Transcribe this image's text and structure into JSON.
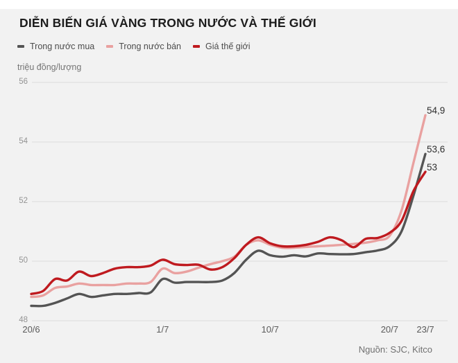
{
  "title": "DIỄN BIẾN GIÁ VÀNG TRONG NƯỚC VÀ THẾ GIỚI",
  "source": "Nguồn: SJC, Kitco",
  "colors": {
    "background": "#f2f2f2",
    "top_strip": "#ffffff",
    "grid": "#dcdcdc",
    "buy_line": "#545454",
    "sell_line": "#e9a1a0",
    "world_line": "#bf1a1f"
  },
  "chart_data": {
    "type": "line",
    "title": "DIỄN BIẾN GIÁ VÀNG TRONG NƯỚC VÀ THẾ GIỚI",
    "ylabel": "triệu đồng/lượng",
    "xlabel": "",
    "ylim": [
      48,
      56
    ],
    "yticks": [
      48,
      50,
      52,
      54,
      56
    ],
    "grid": true,
    "legend_position": "top-left",
    "x_days_total": 33,
    "xticks": [
      {
        "day": 0,
        "label": "20/6"
      },
      {
        "day": 11,
        "label": "1/7"
      },
      {
        "day": 20,
        "label": "10/7"
      },
      {
        "day": 30,
        "label": "20/7"
      },
      {
        "day": 33,
        "label": "23/7"
      }
    ],
    "series": [
      {
        "name": "Trong nước mua",
        "color": "#545454",
        "end_label": "53,6",
        "end_value": 53.6,
        "values": [
          48.5,
          48.5,
          48.6,
          48.75,
          48.9,
          48.8,
          48.85,
          48.9,
          48.9,
          48.93,
          48.95,
          49.4,
          49.28,
          49.3,
          49.3,
          49.3,
          49.35,
          49.6,
          50.05,
          50.35,
          50.2,
          50.15,
          50.2,
          50.16,
          50.26,
          50.24,
          50.23,
          50.24,
          50.3,
          50.36,
          50.5,
          51.0,
          52.2,
          53.6
        ]
      },
      {
        "name": "Trong nước bán",
        "color": "#e9a1a0",
        "end_label": "54,9",
        "end_value": 54.9,
        "values": [
          48.8,
          48.85,
          49.1,
          49.15,
          49.25,
          49.2,
          49.2,
          49.2,
          49.25,
          49.25,
          49.3,
          49.75,
          49.6,
          49.65,
          49.78,
          49.9,
          50.0,
          50.15,
          50.55,
          50.7,
          50.55,
          50.45,
          50.45,
          50.48,
          50.5,
          50.52,
          50.55,
          50.58,
          50.62,
          50.7,
          50.85,
          51.7,
          53.3,
          54.9
        ]
      },
      {
        "name": "Giá thế giới",
        "color": "#bf1a1f",
        "end_label": "53",
        "end_value": 53.0,
        "values": [
          48.9,
          49.0,
          49.4,
          49.35,
          49.65,
          49.5,
          49.6,
          49.75,
          49.8,
          49.8,
          49.85,
          50.05,
          49.9,
          49.87,
          49.88,
          49.72,
          49.8,
          50.1,
          50.55,
          50.8,
          50.6,
          50.5,
          50.5,
          50.55,
          50.65,
          50.8,
          50.7,
          50.47,
          50.75,
          50.78,
          50.95,
          51.35,
          52.35,
          53.0
        ]
      }
    ]
  }
}
